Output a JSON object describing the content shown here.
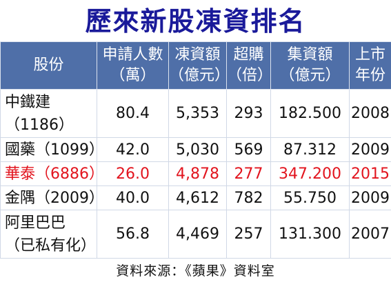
{
  "title": "歷來新股凍資排名",
  "table": {
    "headers": [
      [
        "股份"
      ],
      [
        "申請人數",
        "（萬）"
      ],
      [
        "凍資額",
        "（億元）"
      ],
      [
        "超購",
        "（倍）"
      ],
      [
        "集資額",
        "（億元）"
      ],
      [
        "上市",
        "年份"
      ]
    ],
    "rows": [
      {
        "name": [
          "中鐵建",
          "（1186）"
        ],
        "applicants": "80.4",
        "frozen": "5,353",
        "oversub": "293",
        "raised": "182.500",
        "year": "2008",
        "highlight": false
      },
      {
        "name": [
          "國藥（1099）"
        ],
        "applicants": "42.0",
        "frozen": "5,030",
        "oversub": "569",
        "raised": "87.312",
        "year": "2009",
        "highlight": false
      },
      {
        "name": [
          "華泰（6886）"
        ],
        "applicants": "26.0",
        "frozen": "4,878",
        "oversub": "277",
        "raised": "347.200",
        "year": "2015",
        "highlight": true
      },
      {
        "name": [
          "金隅（2009）"
        ],
        "applicants": "40.0",
        "frozen": "4,612",
        "oversub": "782",
        "raised": "55.750",
        "year": "2009",
        "highlight": false
      },
      {
        "name": [
          "阿里巴巴",
          "（已私有化）"
        ],
        "applicants": "56.8",
        "frozen": "4,469",
        "oversub": "257",
        "raised": "131.300",
        "year": "2007",
        "highlight": false
      }
    ]
  },
  "source": "資料來源：《蘋果》資料室",
  "colors": {
    "header_bg": "#4f6fa8",
    "title": "#1a1a9a",
    "highlight": "#e2141e"
  }
}
